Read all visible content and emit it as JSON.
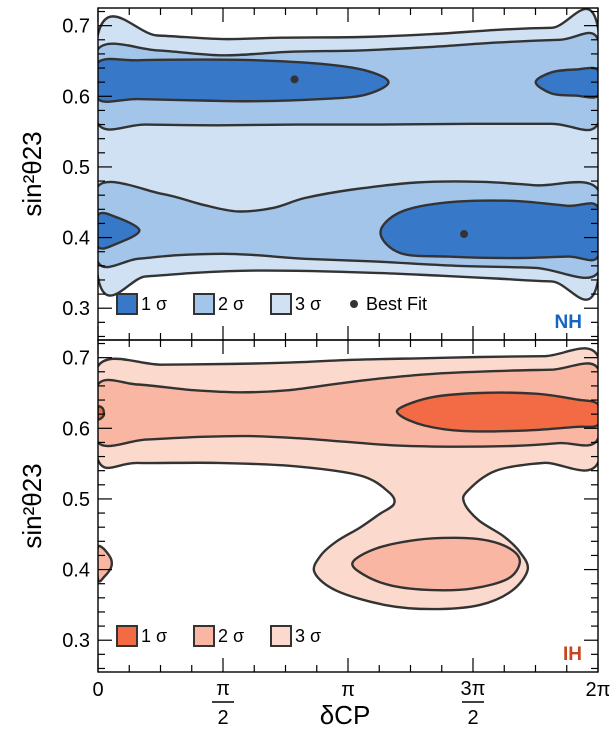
{
  "chart_data": [
    {
      "type": "contour",
      "panel_label": "NH",
      "panel_label_color": "#1565c0",
      "xlabel": "δCP",
      "ylabel": "sin²θ23",
      "xlim": [
        0,
        6.2832
      ],
      "ylim": [
        0.255,
        0.725
      ],
      "x_ticks": [
        {
          "value": 0,
          "label": "0"
        },
        {
          "value": 1.5708,
          "label": "π/2"
        },
        {
          "value": 3.1416,
          "label": "π"
        },
        {
          "value": 4.7124,
          "label": "3π/2"
        },
        {
          "value": 6.2832,
          "label": "2π"
        }
      ],
      "y_ticks": [
        {
          "value": 0.3,
          "label": "0.3"
        },
        {
          "value": 0.4,
          "label": "0.4"
        },
        {
          "value": 0.5,
          "label": "0.5"
        },
        {
          "value": 0.6,
          "label": "0.6"
        },
        {
          "value": 0.7,
          "label": "0.7"
        }
      ],
      "grid": false,
      "legend_position": "bottom-left",
      "legend": [
        {
          "label": "1 σ",
          "color": "#3878c8"
        },
        {
          "label": "2 σ",
          "color": "#a3c5ea"
        },
        {
          "label": "3 σ",
          "color": "#cfe1f3"
        },
        {
          "label": "Best Fit",
          "color": "#333333"
        }
      ],
      "best_fit": [
        [
          2.47,
          0.624
        ],
        [
          4.6,
          0.405
        ]
      ],
      "regions": [
        {
          "level": "3σ",
          "color": "#cfe1f3",
          "points": [
            [
              0.0,
              0.688
            ],
            [
              0.75,
              0.686
            ],
            [
              1.57,
              0.681
            ],
            [
              2.3,
              0.683
            ],
            [
              3.3,
              0.684
            ],
            [
              4.2,
              0.688
            ],
            [
              5.0,
              0.694
            ],
            [
              5.7,
              0.697
            ],
            [
              6.2832,
              0.697
            ],
            [
              6.2832,
              0.339
            ],
            [
              5.7,
              0.338
            ],
            [
              5.0,
              0.342
            ],
            [
              4.3,
              0.346
            ],
            [
              3.5,
              0.35
            ],
            [
              2.5,
              0.353
            ],
            [
              1.8,
              0.353
            ],
            [
              1.2,
              0.35
            ],
            [
              0.6,
              0.345
            ],
            [
              0.0,
              0.343
            ]
          ]
        },
        {
          "level": "2σ",
          "color": "#a3c5ea",
          "points": [
            [
              0.0,
              0.667
            ],
            [
              0.75,
              0.665
            ],
            [
              1.57,
              0.658
            ],
            [
              2.4,
              0.663
            ],
            [
              3.3,
              0.665
            ],
            [
              4.2,
              0.67
            ],
            [
              5.0,
              0.676
            ],
            [
              5.8,
              0.68
            ],
            [
              6.2832,
              0.681
            ],
            [
              6.2832,
              0.561
            ],
            [
              5.7,
              0.561
            ],
            [
              4.7,
              0.561
            ],
            [
              3.5,
              0.56
            ],
            [
              2.5,
              0.56
            ],
            [
              1.5,
              0.559
            ],
            [
              0.6,
              0.56
            ],
            [
              0.0,
              0.561
            ]
          ]
        },
        {
          "level": "2σ",
          "color": "#a3c5ea",
          "points": [
            [
              0.0,
              0.473
            ],
            [
              0.8,
              0.462
            ],
            [
              1.3,
              0.447
            ],
            [
              1.75,
              0.437
            ],
            [
              2.2,
              0.442
            ],
            [
              2.6,
              0.456
            ],
            [
              3.2,
              0.468
            ],
            [
              4.0,
              0.478
            ],
            [
              4.8,
              0.479
            ],
            [
              5.5,
              0.474
            ],
            [
              6.2832,
              0.468
            ],
            [
              6.2832,
              0.35
            ],
            [
              5.5,
              0.357
            ],
            [
              4.5,
              0.36
            ],
            [
              3.5,
              0.366
            ],
            [
              2.6,
              0.37
            ],
            [
              2.0,
              0.375
            ],
            [
              1.57,
              0.377
            ],
            [
              1.0,
              0.375
            ],
            [
              0.5,
              0.37
            ],
            [
              0.0,
              0.365
            ]
          ]
        },
        {
          "level": "1σ",
          "color": "#3878c8",
          "points": [
            [
              0.0,
              0.648
            ],
            [
              0.5,
              0.651
            ],
            [
              1.3,
              0.652
            ],
            [
              2.0,
              0.651
            ],
            [
              2.8,
              0.646
            ],
            [
              3.35,
              0.637
            ],
            [
              3.65,
              0.62
            ],
            [
              3.35,
              0.602
            ],
            [
              2.8,
              0.596
            ],
            [
              2.0,
              0.593
            ],
            [
              1.3,
              0.594
            ],
            [
              0.5,
              0.596
            ],
            [
              0.0,
              0.596
            ]
          ]
        },
        {
          "level": "1σ",
          "color": "#3878c8",
          "points": [
            [
              6.2832,
              0.637
            ],
            [
              6.0,
              0.638
            ],
            [
              5.7,
              0.634
            ],
            [
              5.5,
              0.62
            ],
            [
              5.7,
              0.604
            ],
            [
              6.0,
              0.601
            ],
            [
              6.2832,
              0.601
            ]
          ]
        },
        {
          "level": "1σ",
          "color": "#3878c8",
          "points": [
            [
              3.55,
              0.407
            ],
            [
              3.8,
              0.436
            ],
            [
              4.4,
              0.45
            ],
            [
              5.2,
              0.452
            ],
            [
              5.9,
              0.445
            ],
            [
              6.2832,
              0.443
            ],
            [
              6.2832,
              0.373
            ],
            [
              5.9,
              0.373
            ],
            [
              5.2,
              0.371
            ],
            [
              4.4,
              0.373
            ],
            [
              3.8,
              0.378
            ]
          ]
        },
        {
          "level": "1σ",
          "color": "#3878c8",
          "points": [
            [
              0.0,
              0.432
            ],
            [
              0.25,
              0.428
            ],
            [
              0.52,
              0.41
            ],
            [
              0.25,
              0.392
            ],
            [
              0.0,
              0.387
            ]
          ]
        }
      ]
    },
    {
      "type": "contour",
      "panel_label": "IH",
      "panel_label_color": "#c8441e",
      "xlabel": "δCP",
      "ylabel": "sin²θ23",
      "xlim": [
        0,
        6.2832
      ],
      "ylim": [
        0.255,
        0.725
      ],
      "x_ticks": [
        {
          "value": 0,
          "label": "0"
        },
        {
          "value": 1.5708,
          "label": "π/2"
        },
        {
          "value": 3.1416,
          "label": "π"
        },
        {
          "value": 4.7124,
          "label": "3π/2"
        },
        {
          "value": 6.2832,
          "label": "2π"
        }
      ],
      "y_ticks": [
        {
          "value": 0.3,
          "label": "0.3"
        },
        {
          "value": 0.4,
          "label": "0.4"
        },
        {
          "value": 0.5,
          "label": "0.5"
        },
        {
          "value": 0.6,
          "label": "0.6"
        },
        {
          "value": 0.7,
          "label": "0.7"
        }
      ],
      "grid": false,
      "legend_position": "bottom-left",
      "legend": [
        {
          "label": "1 σ",
          "color": "#f26b44"
        },
        {
          "label": "2 σ",
          "color": "#f9b7a3"
        },
        {
          "label": "3 σ",
          "color": "#fcd9cd"
        }
      ],
      "regions": [
        {
          "level": "3σ",
          "color": "#fcd9cd",
          "points": [
            [
              0.0,
              0.688
            ],
            [
              0.8,
              0.69
            ],
            [
              1.6,
              0.691
            ],
            [
              2.4,
              0.693
            ],
            [
              3.2,
              0.697
            ],
            [
              4.0,
              0.699
            ],
            [
              4.8,
              0.701
            ],
            [
              5.6,
              0.702
            ],
            [
              6.2832,
              0.702
            ],
            [
              6.2832,
              0.551
            ],
            [
              5.6,
              0.551
            ],
            [
              5.0,
              0.54
            ],
            [
              4.65,
              0.512
            ],
            [
              4.6,
              0.495
            ],
            [
              4.78,
              0.47
            ],
            [
              5.1,
              0.447
            ],
            [
              5.3,
              0.425
            ],
            [
              5.4,
              0.4
            ],
            [
              5.2,
              0.37
            ],
            [
              4.8,
              0.35
            ],
            [
              4.2,
              0.344
            ],
            [
              3.6,
              0.35
            ],
            [
              3.0,
              0.37
            ],
            [
              2.72,
              0.396
            ],
            [
              2.8,
              0.42
            ],
            [
              3.0,
              0.44
            ],
            [
              3.3,
              0.46
            ],
            [
              3.53,
              0.478
            ],
            [
              3.72,
              0.493
            ],
            [
              3.65,
              0.51
            ],
            [
              3.3,
              0.533
            ],
            [
              2.5,
              0.546
            ],
            [
              1.5,
              0.551
            ],
            [
              0.5,
              0.551
            ],
            [
              0.0,
              0.555
            ]
          ]
        },
        {
          "level": "2σ",
          "color": "#f9b7a3",
          "points": [
            [
              0.0,
              0.662
            ],
            [
              0.5,
              0.662
            ],
            [
              1.2,
              0.654
            ],
            [
              1.8,
              0.651
            ],
            [
              2.4,
              0.654
            ],
            [
              3.0,
              0.663
            ],
            [
              3.5,
              0.67
            ],
            [
              4.2,
              0.677
            ],
            [
              5.0,
              0.681
            ],
            [
              5.7,
              0.683
            ],
            [
              6.2832,
              0.685
            ],
            [
              6.2832,
              0.585
            ],
            [
              5.8,
              0.579
            ],
            [
              5.2,
              0.575
            ],
            [
              4.4,
              0.574
            ],
            [
              3.7,
              0.576
            ],
            [
              3.1,
              0.581
            ],
            [
              2.5,
              0.586
            ],
            [
              1.9,
              0.589
            ],
            [
              1.3,
              0.588
            ],
            [
              0.6,
              0.584
            ],
            [
              0.0,
              0.58
            ]
          ]
        },
        {
          "level": "2σ",
          "color": "#f9b7a3",
          "points": [
            [
              3.2,
              0.41
            ],
            [
              3.5,
              0.43
            ],
            [
              4.0,
              0.442
            ],
            [
              4.5,
              0.445
            ],
            [
              4.9,
              0.441
            ],
            [
              5.2,
              0.428
            ],
            [
              5.3,
              0.41
            ],
            [
              5.15,
              0.387
            ],
            [
              4.7,
              0.373
            ],
            [
              4.2,
              0.371
            ],
            [
              3.7,
              0.377
            ],
            [
              3.35,
              0.392
            ]
          ]
        },
        {
          "level": "2σ",
          "color": "#f9b7a3",
          "points": [
            [
              0.0,
              0.432
            ],
            [
              0.14,
              0.42
            ],
            [
              0.17,
              0.405
            ],
            [
              0.08,
              0.39
            ],
            [
              0.0,
              0.386
            ]
          ]
        },
        {
          "level": "1σ",
          "color": "#f26b44",
          "points": [
            [
              3.8,
              0.629
            ],
            [
              4.2,
              0.644
            ],
            [
              4.8,
              0.65
            ],
            [
              5.5,
              0.649
            ],
            [
              6.0,
              0.641
            ],
            [
              6.2832,
              0.634
            ],
            [
              6.2832,
              0.605
            ],
            [
              6.0,
              0.602
            ],
            [
              5.4,
              0.597
            ],
            [
              4.6,
              0.596
            ],
            [
              4.1,
              0.604
            ],
            [
              3.8,
              0.618
            ]
          ]
        },
        {
          "level": "1σ",
          "color": "#f26b44",
          "points": [
            [
              0.0,
              0.63
            ],
            [
              0.06,
              0.628
            ],
            [
              0.07,
              0.618
            ],
            [
              0.0,
              0.613
            ]
          ]
        }
      ]
    }
  ]
}
